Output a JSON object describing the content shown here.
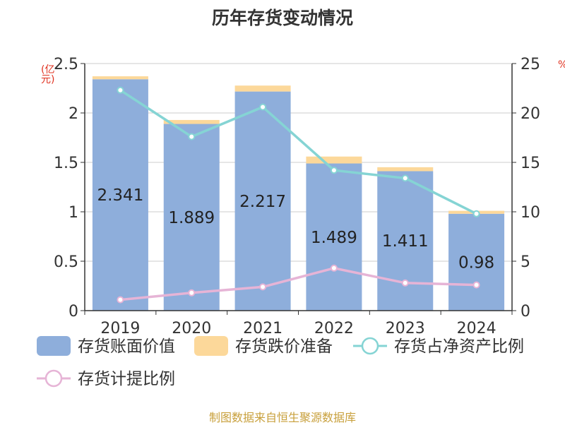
{
  "chart_data": {
    "type": "bar",
    "title": "历年存货变动情况",
    "categories": [
      "2019",
      "2020",
      "2021",
      "2022",
      "2023",
      "2024"
    ],
    "series": [
      {
        "name": "存货账面价值",
        "type": "bar",
        "axis": "left",
        "stack": "inventory",
        "color": "#8eaedb",
        "values": [
          2.341,
          1.889,
          2.217,
          1.489,
          1.411,
          0.98
        ]
      },
      {
        "name": "存货跌价准备",
        "type": "bar",
        "axis": "left",
        "stack": "inventory",
        "color": "#fcd89a",
        "values": [
          0.03,
          0.04,
          0.06,
          0.07,
          0.04,
          0.03
        ]
      },
      {
        "name": "存货占净资产比例",
        "type": "line",
        "axis": "right",
        "color": "#85d4d4",
        "values": [
          22.3,
          17.6,
          20.6,
          14.2,
          13.4,
          9.8
        ]
      },
      {
        "name": "存货计提比例",
        "type": "line",
        "axis": "right",
        "color": "#e6b4d6",
        "values": [
          1.1,
          1.8,
          2.4,
          4.3,
          2.8,
          2.6
        ]
      }
    ],
    "y_left": {
      "unit": "(亿元)",
      "ylim": [
        0,
        2.5
      ],
      "ticks": [
        "0",
        "0.5",
        "1",
        "1.5",
        "2",
        "2.5"
      ]
    },
    "y_right": {
      "ylim": [
        0,
        25
      ],
      "ticks": [
        "0",
        "5",
        "10",
        "15",
        "20",
        "25"
      ],
      "unit_fragment": "%"
    },
    "data_labels": [
      "2.341",
      "1.889",
      "2.217",
      "1.489",
      "1.411",
      "0.98"
    ],
    "grid": true,
    "legend_position": "bottom"
  },
  "source": "制图数据来自恒生聚源数据库"
}
